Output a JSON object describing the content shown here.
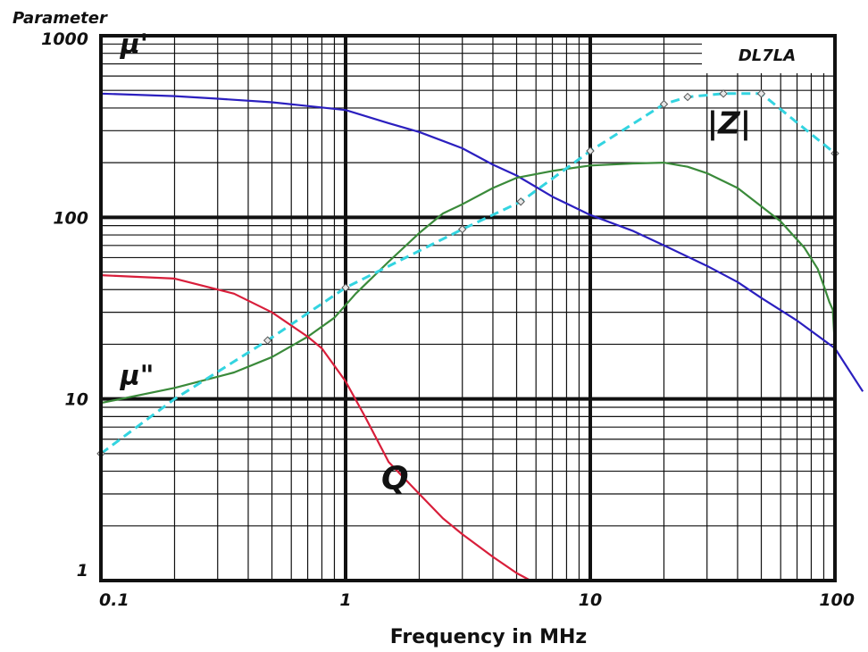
{
  "chart_data": {
    "type": "line",
    "title": "DL7LA",
    "ylabel": "Parameter",
    "xlabel": "Frequency in  MHz",
    "x_scale": "log",
    "y_scale": "log",
    "xlim": [
      0.1,
      100
    ],
    "ylim": [
      1,
      1000
    ],
    "x_ticks": [
      {
        "value": 0.1,
        "label": "0.1"
      },
      {
        "value": 1,
        "label": "1"
      },
      {
        "value": 10,
        "label": "10"
      },
      {
        "value": 100,
        "label": "100"
      }
    ],
    "y_ticks": [
      {
        "value": 1,
        "label": "1"
      },
      {
        "value": 10,
        "label": "10"
      },
      {
        "value": 100,
        "label": "100"
      },
      {
        "value": 1000,
        "label": "1000"
      }
    ],
    "grid": true,
    "series": [
      {
        "name": "μ'",
        "color": "#2b1fbf",
        "style": "solid",
        "label_pos": {
          "x": 0.12,
          "y": 800
        },
        "points": [
          [
            0.1,
            480
          ],
          [
            0.2,
            465
          ],
          [
            0.3,
            450
          ],
          [
            0.5,
            430
          ],
          [
            0.7,
            410
          ],
          [
            1,
            390
          ],
          [
            1.5,
            330
          ],
          [
            2,
            295
          ],
          [
            3,
            240
          ],
          [
            4,
            195
          ],
          [
            5,
            170
          ],
          [
            7,
            130
          ],
          [
            10,
            103
          ],
          [
            15,
            84
          ],
          [
            20,
            70
          ],
          [
            30,
            54
          ],
          [
            40,
            44
          ],
          [
            50,
            36
          ],
          [
            70,
            27
          ],
          [
            100,
            19
          ],
          [
            130,
            11
          ]
        ]
      },
      {
        "name": "μ\"",
        "color": "#3a8a3a",
        "style": "solid",
        "label_pos": {
          "x": 0.12,
          "y": 12
        },
        "points": [
          [
            0.1,
            9.5
          ],
          [
            0.2,
            11.5
          ],
          [
            0.35,
            14
          ],
          [
            0.5,
            17
          ],
          [
            0.7,
            22
          ],
          [
            0.9,
            28
          ],
          [
            1.1,
            38
          ],
          [
            1.5,
            57
          ],
          [
            2,
            82
          ],
          [
            2.5,
            105
          ],
          [
            3,
            118
          ],
          [
            4,
            145
          ],
          [
            5,
            165
          ],
          [
            7,
            180
          ],
          [
            10,
            193
          ],
          [
            15,
            198
          ],
          [
            20,
            200
          ],
          [
            25,
            190
          ],
          [
            30,
            175
          ],
          [
            40,
            145
          ],
          [
            50,
            115
          ],
          [
            60,
            95
          ],
          [
            75,
            68
          ],
          [
            85,
            52
          ],
          [
            90,
            42
          ],
          [
            95,
            34
          ],
          [
            98,
            31
          ],
          [
            100,
            19
          ]
        ]
      },
      {
        "name": "|Z|",
        "color": "#33d4e0",
        "style": "dashed",
        "label_pos": {
          "x": 30,
          "y": 290
        },
        "points": [
          [
            0.1,
            5
          ],
          [
            0.2,
            10
          ],
          [
            0.48,
            21
          ],
          [
            1,
            41
          ],
          [
            3,
            86
          ],
          [
            5.2,
            122
          ],
          [
            10,
            232
          ],
          [
            20,
            420
          ],
          [
            25,
            460
          ],
          [
            35,
            480
          ],
          [
            50,
            480
          ],
          [
            100,
            225
          ]
        ]
      },
      {
        "name": "Q",
        "color": "#d81e3a",
        "style": "solid",
        "label_pos": {
          "x": 1.4,
          "y": 3.2
        },
        "points": [
          [
            0.1,
            48
          ],
          [
            0.2,
            46
          ],
          [
            0.35,
            38
          ],
          [
            0.5,
            30
          ],
          [
            0.7,
            22
          ],
          [
            0.8,
            19
          ],
          [
            1,
            12.5
          ],
          [
            1.2,
            8
          ],
          [
            1.5,
            4.5
          ],
          [
            2,
            3
          ],
          [
            2.5,
            2.2
          ],
          [
            3,
            1.8
          ],
          [
            4,
            1.35
          ],
          [
            5,
            1.1
          ],
          [
            5.7,
            1
          ]
        ]
      }
    ],
    "markers": [
      {
        "series": "|Z|",
        "points": [
          [
            0.1,
            5
          ],
          [
            0.48,
            21
          ],
          [
            1,
            41
          ],
          [
            3,
            86
          ],
          [
            5.2,
            122
          ],
          [
            10,
            232
          ],
          [
            20,
            420
          ],
          [
            25,
            460
          ],
          [
            35,
            480
          ],
          [
            50,
            480
          ],
          [
            100,
            225
          ]
        ]
      }
    ]
  }
}
